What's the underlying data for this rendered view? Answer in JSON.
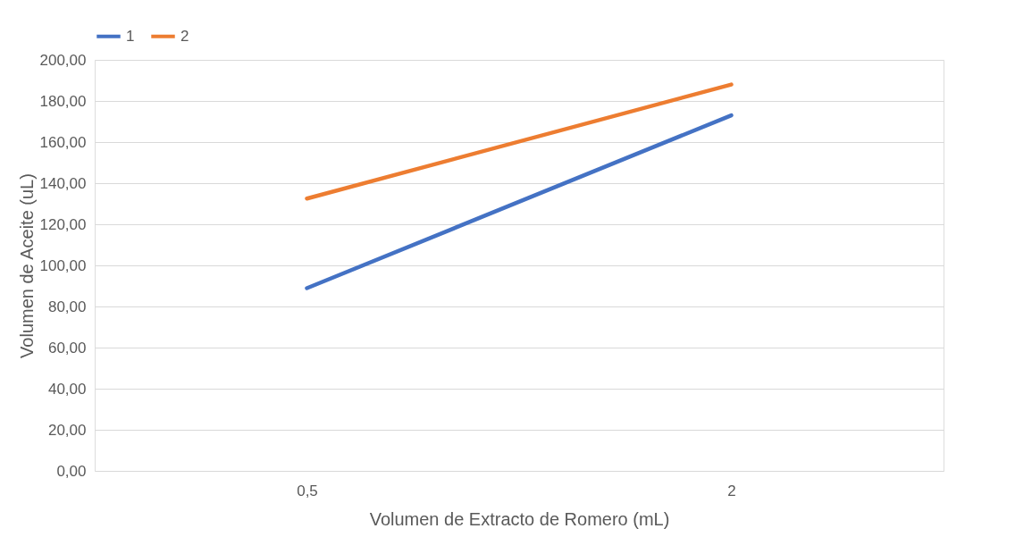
{
  "chart_data": {
    "type": "line",
    "xlabel": "Volumen de Extracto de Romero (mL)",
    "ylabel": "Volumen de Aceite (uL)",
    "categories": [
      "0,5",
      "2"
    ],
    "series": [
      {
        "name": "1",
        "color": "#4472c4",
        "values": [
          88.9,
          173.0
        ]
      },
      {
        "name": "2",
        "color": "#ed7d31",
        "values": [
          132.5,
          188.0
        ]
      }
    ],
    "ylim": [
      0,
      200
    ],
    "yticks": [
      {
        "value": 0,
        "label": "0,00"
      },
      {
        "value": 20,
        "label": "20,00"
      },
      {
        "value": 40,
        "label": "40,00"
      },
      {
        "value": 60,
        "label": "60,00"
      },
      {
        "value": 80,
        "label": "80,00"
      },
      {
        "value": 100,
        "label": "100,00"
      },
      {
        "value": 120,
        "label": "120,00"
      },
      {
        "value": 140,
        "label": "140,00"
      },
      {
        "value": 160,
        "label": "160,00"
      },
      {
        "value": 180,
        "label": "180,00"
      },
      {
        "value": 200,
        "label": "200,00"
      }
    ],
    "grid": "y",
    "legend": "top",
    "marker": "none",
    "line_style": "solid"
  }
}
